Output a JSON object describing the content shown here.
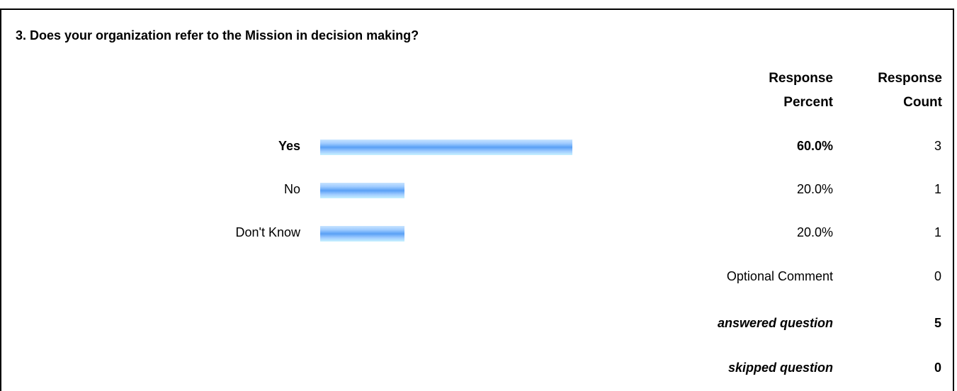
{
  "question": "3. Does your organization refer to the Mission in decision making?",
  "headers": {
    "percent_line1": "Response",
    "percent_line2": "Percent",
    "count_line1": "Response",
    "count_line2": "Count"
  },
  "colors": {
    "bar": "#5aa0f5"
  },
  "chart_data": {
    "type": "bar",
    "orientation": "horizontal",
    "categories": [
      "Yes",
      "No",
      "Don't Know"
    ],
    "values": [
      60.0,
      20.0,
      20.0
    ],
    "percent_labels": [
      "60.0%",
      "20.0%",
      "20.0%"
    ],
    "counts": [
      "3",
      "1",
      "1"
    ],
    "xlim": [
      0,
      100
    ]
  },
  "optional_comment": {
    "label": "Optional Comment",
    "count": "0"
  },
  "answered": {
    "label": "answered question",
    "count": "5"
  },
  "skipped": {
    "label": "skipped question",
    "count": "0"
  }
}
